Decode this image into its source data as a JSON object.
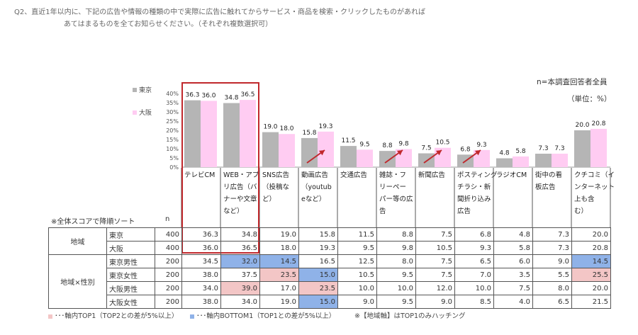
{
  "header": {
    "question_line1": "Q2、直近1年以内に、下記の広告や情報の種類の中で実際に広告に触れてからサービス・商品を検索・クリックしたものがあれば",
    "question_line2": "あてはまるものを全てお知らせください。（それぞれ複数選択可）"
  },
  "notes": {
    "base": "n=本調査回答者全員",
    "unit": "（単位：%）",
    "sort": "※全体スコアで降順ソート",
    "n_header": "n"
  },
  "colors": {
    "tokyo": "#b5b5b5",
    "osaka": "#ffccf2",
    "top_highlight": "#f3c6c6",
    "bottom_highlight": "#8fb2e8",
    "frame": "#c0282c",
    "arrow": "#c0282c"
  },
  "chart_data": {
    "type": "bar",
    "categories": [
      "テレビCM",
      "WEB・アプリ広告（バナーや文章など）",
      "SNS広告（投稿など）",
      "動画広告（youtubeなど）",
      "交通広告",
      "雑誌・フリーペーパー等の広告",
      "新聞広告",
      "ポスティングチラシ・新聞折り込み広告",
      "ラジオCM",
      "街中の看板広告",
      "クチコミ（インターネット上も含む）"
    ],
    "category_labels": [
      [
        "テレビCM"
      ],
      [
        "WEB・アプ",
        "リ広告（バ",
        "ナーや文章",
        "など）"
      ],
      [
        "SNS広告",
        "（投稿な",
        "ど）"
      ],
      [
        "動画広告",
        "（youtub",
        "eなど）"
      ],
      [
        "交通広告"
      ],
      [
        "雑誌・フ",
        "リーペー",
        "パー等の広",
        "告"
      ],
      [
        "新聞広告"
      ],
      [
        "ポスティング",
        "チラシ・新",
        "聞折り込み",
        "広告"
      ],
      [
        "ラジオCM"
      ],
      [
        "街中の看",
        "板広告"
      ],
      [
        "クチコミ（イ",
        "ンターネット",
        "上も含",
        "む）"
      ]
    ],
    "series": [
      {
        "name": "東京",
        "values": [
          36.3,
          34.8,
          19.0,
          15.8,
          11.5,
          8.8,
          7.5,
          6.8,
          4.8,
          7.3,
          20.0
        ]
      },
      {
        "name": "大阪",
        "values": [
          36.0,
          36.5,
          18.0,
          19.3,
          9.5,
          9.8,
          10.5,
          9.3,
          5.8,
          7.3,
          20.8
        ]
      }
    ],
    "data_labels": [
      [
        "36.3",
        "34.8",
        "19.0",
        "15.8",
        "11.5",
        "8.8",
        "7.5",
        "6.8",
        "4.8",
        "7.3",
        "20.0"
      ],
      [
        "36.0",
        "36.5",
        "18.0",
        "19.3",
        "9.5",
        "9.8",
        "10.5",
        "9.3",
        "5.8",
        "7.3",
        "20.8"
      ]
    ],
    "yticks": [
      "0%",
      "5%",
      "10%",
      "15%",
      "20%",
      "25%",
      "30%",
      "35%",
      "40%"
    ],
    "ylim": [
      0,
      40
    ],
    "legend_position": "left",
    "arrow_categories": [
      "動画広告（youtubeなど）",
      "雑誌・フリーペーパー等の広告",
      "新聞広告",
      "ポスティングチラシ・新聞折り込み広告"
    ],
    "framed_categories": [
      "テレビCM",
      "WEB・アプリ広告（バナーや文章など）"
    ]
  },
  "table": {
    "groups": [
      {
        "label": "地域",
        "rows": [
          {
            "label": "東京",
            "n": "400",
            "values": [
              "36.3",
              "34.8",
              "19.0",
              "15.8",
              "11.5",
              "8.8",
              "7.5",
              "6.8",
              "4.8",
              "7.3",
              "20.0"
            ],
            "highlight": [
              "",
              "",
              "",
              "",
              "",
              "",
              "",
              "",
              "",
              "",
              ""
            ]
          },
          {
            "label": "大阪",
            "n": "400",
            "values": [
              "36.0",
              "36.5",
              "18.0",
              "19.3",
              "9.5",
              "9.8",
              "10.5",
              "9.3",
              "5.8",
              "7.3",
              "20.8"
            ],
            "highlight": [
              "",
              "",
              "",
              "",
              "",
              "",
              "",
              "",
              "",
              "",
              ""
            ]
          }
        ]
      },
      {
        "label": "地域×性別",
        "rows": [
          {
            "label": "東京男性",
            "n": "200",
            "values": [
              "34.5",
              "32.0",
              "14.5",
              "16.5",
              "12.5",
              "8.0",
              "7.5",
              "6.5",
              "6.0",
              "9.0",
              "14.5"
            ],
            "highlight": [
              "",
              "bottom",
              "bottom",
              "",
              "",
              "",
              "",
              "",
              "",
              "",
              "bottom"
            ]
          },
          {
            "label": "東京女性",
            "n": "200",
            "values": [
              "38.0",
              "37.5",
              "23.5",
              "15.0",
              "10.5",
              "9.5",
              "7.5",
              "7.0",
              "3.5",
              "5.5",
              "25.5"
            ],
            "highlight": [
              "",
              "",
              "top",
              "bottom",
              "",
              "",
              "",
              "",
              "",
              "",
              "top"
            ]
          },
          {
            "label": "大阪男性",
            "n": "200",
            "values": [
              "34.0",
              "39.0",
              "17.0",
              "23.5",
              "10.0",
              "10.0",
              "12.0",
              "10.0",
              "7.5",
              "8.0",
              "20.0"
            ],
            "highlight": [
              "",
              "top",
              "",
              "top",
              "",
              "",
              "",
              "",
              "",
              "",
              ""
            ]
          },
          {
            "label": "大阪女性",
            "n": "200",
            "values": [
              "38.0",
              "34.0",
              "19.0",
              "15.0",
              "9.0",
              "9.5",
              "9.0",
              "8.5",
              "4.0",
              "6.5",
              "21.5"
            ],
            "highlight": [
              "",
              "",
              "",
              "bottom",
              "",
              "",
              "",
              "",
              "",
              "",
              ""
            ]
          }
        ]
      }
    ]
  },
  "legend_notes": {
    "top": "･･･軸内TOP1（TOP2との差が5%以上）",
    "bottom": "･･･軸内BOTTOM1（TOP1との差が5%以上）",
    "hatch": "※【地域軸】はTOP1のみハッチング"
  }
}
